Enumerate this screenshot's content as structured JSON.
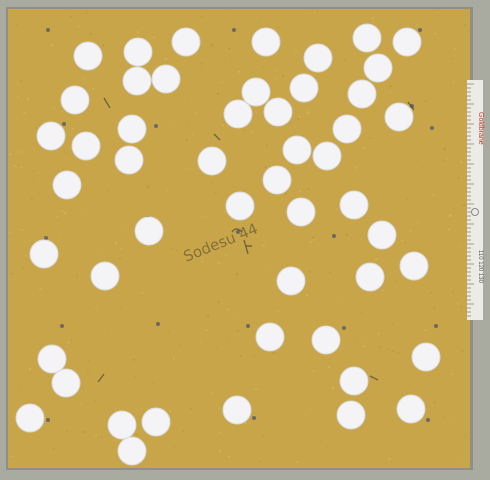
{
  "scene": {
    "description_tag": "cork-board-with-punched-holes",
    "colors": {
      "frame": "#a9aaa0",
      "frame_edge": "#8e8f86",
      "board": "#c9a54a",
      "board_dark": "#b6923c",
      "hole": "#f4f4f6",
      "hole_edge": "#d9dadd",
      "ruler": "#ecebe6",
      "ruler_text": "#c0392b",
      "pin": "#6b6a63",
      "marker": "#3a3a34"
    },
    "handwriting": {
      "label": "Sodesu 44"
    },
    "ruler_text": {
      "brand": "Goldbrane",
      "scale": "110 120 130"
    },
    "hole_count": 62
  }
}
